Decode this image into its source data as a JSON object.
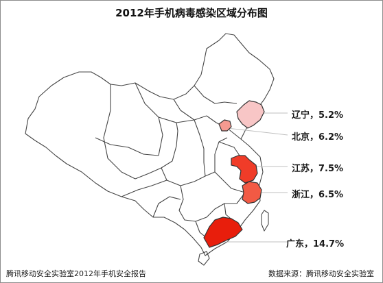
{
  "title": "2012年手机病毒感染区域分布图",
  "colors": {
    "liaoning": "#f8c6c6",
    "beijing": "#f59a90",
    "jiangsu": "#f03c28",
    "zhejiang": "#f25a44",
    "guangdong": "#e81e0c",
    "outline": "#444444",
    "leader": "#bfbfbf"
  },
  "regions": [
    {
      "id": "liaoning",
      "name": "辽宁",
      "value": 5.2,
      "label": "辽宁，5.2%"
    },
    {
      "id": "beijing",
      "name": "北京",
      "value": 6.2,
      "label": "北京，6.2%"
    },
    {
      "id": "jiangsu",
      "name": "江苏",
      "value": 7.5,
      "label": "江苏，7.5%"
    },
    {
      "id": "zhejiang",
      "name": "浙江",
      "value": 6.5,
      "label": "浙江，6.5%"
    },
    {
      "id": "guangdong",
      "name": "广东",
      "value": 14.7,
      "label": "广东，14.7%"
    }
  ],
  "footer": {
    "left": "腾讯移动安全实验室2012年手机安全报告",
    "right": "数据来源：腾讯移动安全实验室"
  }
}
